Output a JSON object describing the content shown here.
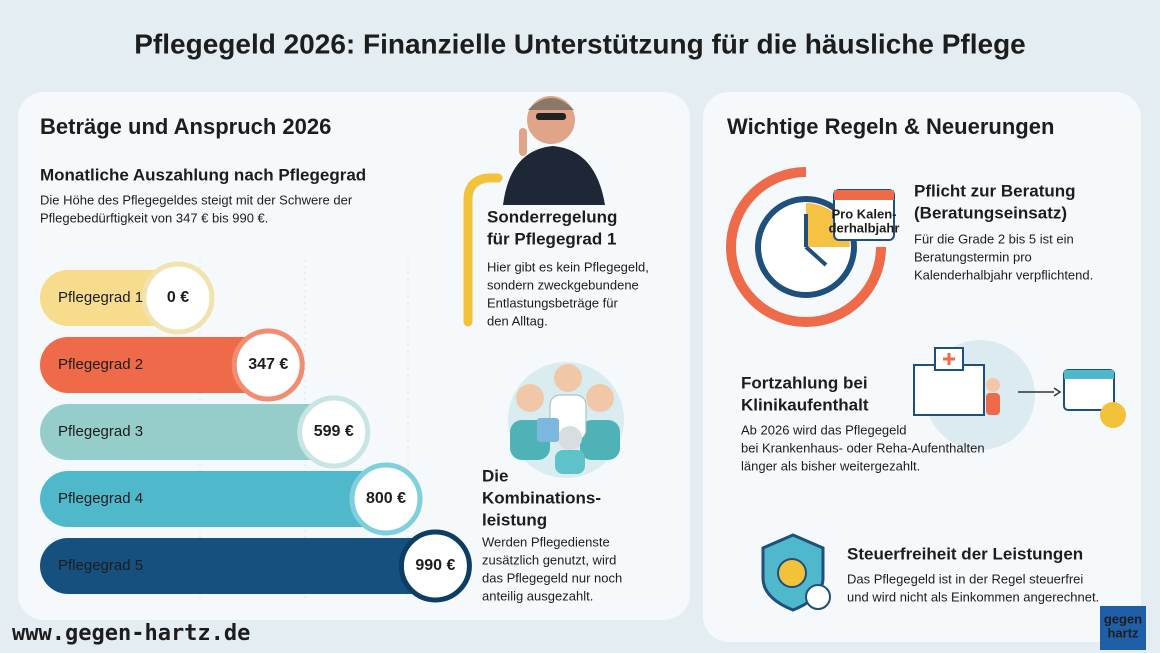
{
  "title": "Pflegegeld 2026: Finanzielle Unterstützung für die häusliche Pflege",
  "left": {
    "heading": "Beträge und Anspruch 2026",
    "subheading": "Monatliche Auszahlung nach Pflegegrad",
    "desc_line1": "Die Höhe des Pflegegeldes steigt mit der Schwere der",
    "desc_line2": "Pflegebedürftigkeit von 347 € bis 990 €.",
    "special": {
      "heading": [
        "Sonderregelung",
        "für Pflegegrad 1"
      ],
      "body": [
        "Hier gibt es kein Pflegegeld,",
        "sondern zweckgebundene",
        "Entlastungsbeträge für",
        "den Alltag."
      ]
    },
    "combination": {
      "heading": [
        "Die",
        "Kombinations-",
        "leistung"
      ],
      "body": [
        "Werden Pflegedienste",
        "zusätzlich genutzt, wird",
        "das Pflegegeld nur noch",
        "anteilig ausgezahlt."
      ]
    }
  },
  "chart_data": {
    "type": "bar",
    "orientation": "horizontal",
    "categories": [
      "Pflegegrad 1",
      "Pflegegrad 2",
      "Pflegegrad 3",
      "Pflegegrad 4",
      "Pflegegrad 5"
    ],
    "values": [
      0,
      347,
      599,
      800,
      990
    ],
    "value_labels": [
      "0 €",
      "347 €",
      "599 €",
      "800 €",
      "990 €"
    ],
    "colors": [
      "#f6dc8c",
      "#ee6a48",
      "#95cdcb",
      "#4fb9cb",
      "#15507f"
    ]
  },
  "right": {
    "heading": "Wichtige Regeln & Neuerungen",
    "calendar_label": [
      "Pro Kalen-",
      "derhalbjahr"
    ],
    "items": [
      {
        "heading": [
          "Pflicht zur Beratung",
          "(Beratungseinsatz)"
        ],
        "body": [
          "Für die Grade 2 bis 5 ist ein",
          "Beratungstermin pro",
          "Kalenderhalbjahr verpflichtend."
        ]
      },
      {
        "heading": [
          "Fortzahlung bei",
          "Klinikaufenthalt"
        ],
        "body": [
          "Ab 2026 wird das Pflegegeld",
          "bei Krankenhaus- oder Reha-Aufenthalten",
          "länger als bisher weitergezahlt."
        ]
      },
      {
        "heading": [
          "Steuerfreiheit der Leistungen"
        ],
        "body": [
          "Das Pflegegeld ist in der Regel steuerfrei",
          "und wird nicht als Einkommen angerechnet."
        ]
      }
    ]
  },
  "footer": {
    "url": "www.gegen-hartz.de",
    "logo": [
      "gegen",
      "hartz"
    ]
  }
}
